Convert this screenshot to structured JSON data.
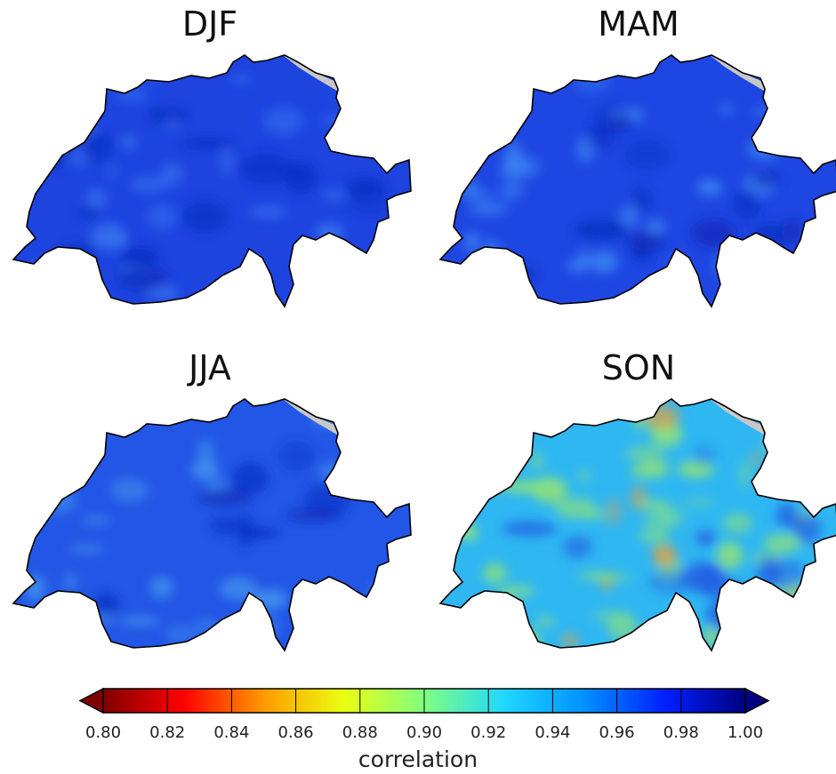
{
  "panels": [
    {
      "id": "djf",
      "title": "DJF",
      "base": "#1e44e0",
      "blobs": "#3a78f0",
      "hot": ""
    },
    {
      "id": "mam",
      "title": "MAM",
      "base": "#1e46e2",
      "blobs": "#3f8cf5",
      "hot": ""
    },
    {
      "id": "jja",
      "title": "JJA",
      "base": "#2256e6",
      "blobs": "#4aa0f0",
      "hot": ""
    },
    {
      "id": "son",
      "title": "SON",
      "base": "#2fb7f2",
      "blobs": "#9ee866",
      "hot": "#f2a030"
    }
  ],
  "colorbar": {
    "label": "correlation",
    "min": 0.8,
    "max": 1.0,
    "ticks": [
      "0.80",
      "0.82",
      "0.84",
      "0.86",
      "0.88",
      "0.90",
      "0.92",
      "0.94",
      "0.96",
      "0.98",
      "1.00"
    ],
    "colors": [
      "#7f0000",
      "#ff0000",
      "#ff9a00",
      "#eaff10",
      "#80ff80",
      "#20d8ff",
      "#0090ff",
      "#0020ff",
      "#000080"
    ],
    "lake_color": "#c8c8c8"
  }
}
